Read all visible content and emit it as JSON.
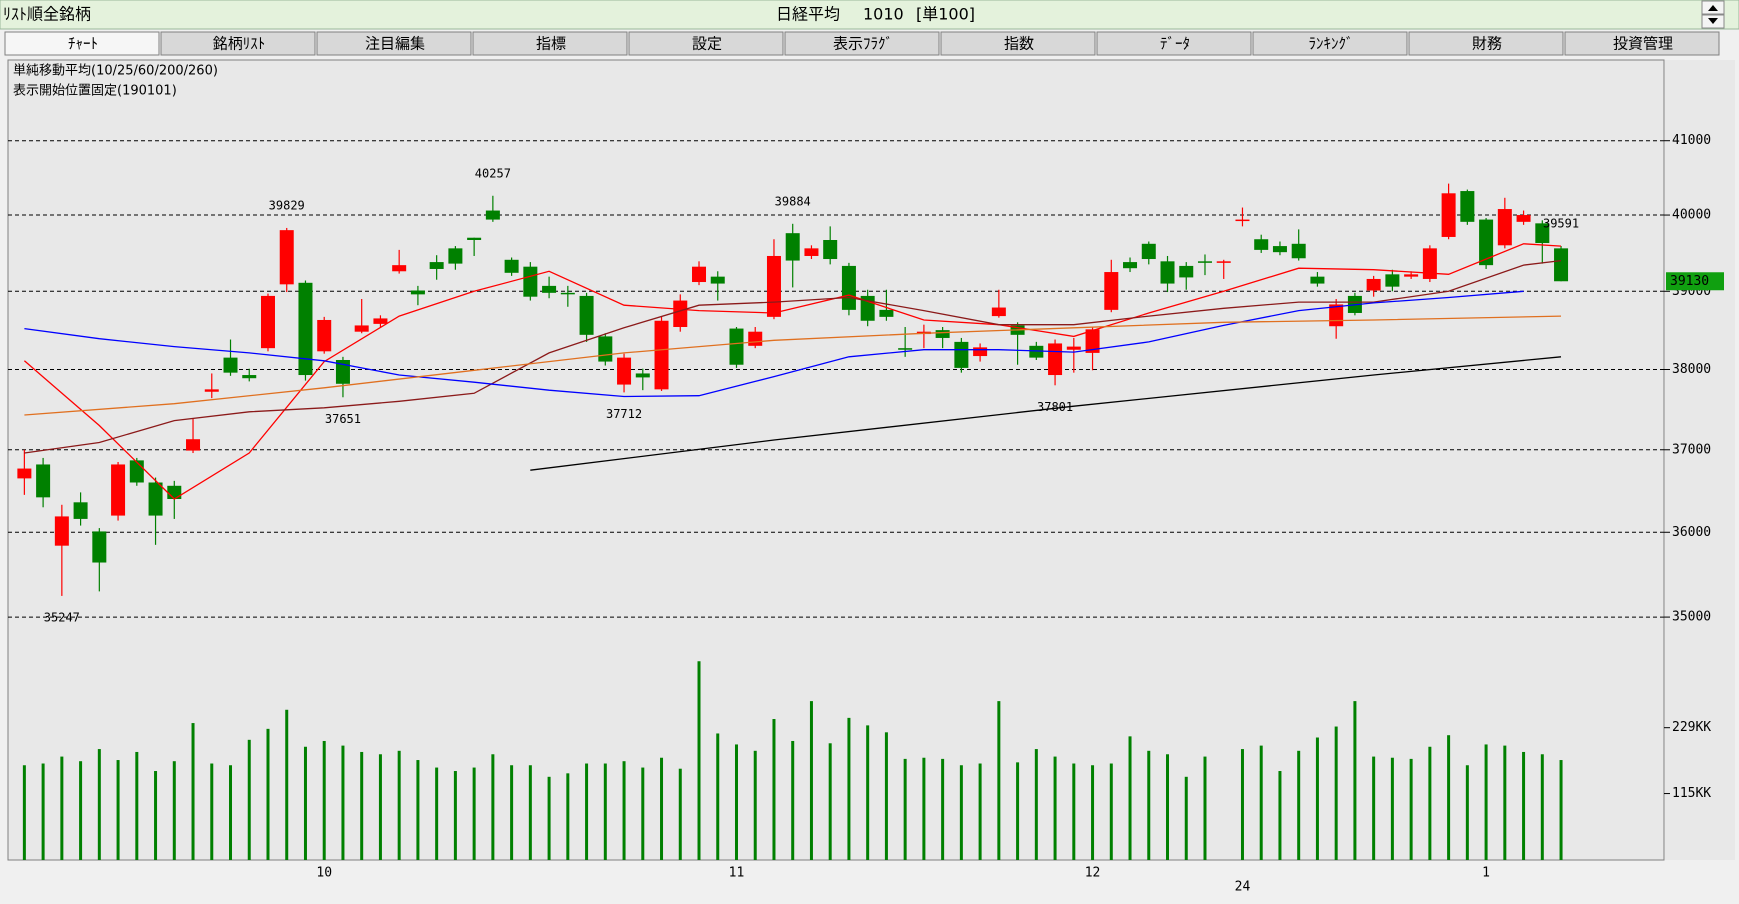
{
  "header": {
    "left": "ﾘｽﾄ順全銘柄",
    "name": "日経平均",
    "code": "1010",
    "unit": "[単100]"
  },
  "tabs": [
    "ﾁｬｰﾄ",
    "銘柄ﾘｽﾄ",
    "注目編集",
    "指標",
    "設定",
    "表示ﾌﾗｸﾞ",
    "指数",
    "ﾃﾞｰﾀ",
    "ﾗﾝｷﾝｸﾞ",
    "財務",
    "投資管理"
  ],
  "chart_data": {
    "type": "candlestick",
    "annotations": [
      "単純移動平均(10/25/60/200/260)",
      "表示開始位置固定(190101)"
    ],
    "log": true,
    "grid": true,
    "up_color": "#ff0000",
    "down_color": "#008000",
    "ylim": [
      34700,
      42100
    ],
    "yticks": [
      35000,
      36000,
      37000,
      38000,
      39000,
      40000,
      41000
    ],
    "categories": [
      null,
      null,
      null,
      null,
      null,
      null,
      null,
      null,
      null,
      null,
      null,
      null,
      null,
      null,
      null,
      null,
      "10",
      null,
      null,
      null,
      null,
      null,
      null,
      null,
      null,
      null,
      null,
      null,
      null,
      null,
      null,
      null,
      null,
      null,
      null,
      null,
      null,
      null,
      "11",
      null,
      null,
      null,
      null,
      null,
      null,
      null,
      null,
      null,
      null,
      null,
      null,
      null,
      null,
      null,
      null,
      null,
      null,
      "12",
      null,
      null,
      null,
      null,
      null,
      null,
      null,
      null,
      null,
      null,
      null,
      null,
      null,
      null,
      null,
      null,
      null,
      null,
      null,
      null,
      "1",
      null,
      null,
      null,
      null
    ],
    "category_years": [
      null,
      null,
      null,
      null,
      null,
      null,
      null,
      null,
      null,
      null,
      null,
      null,
      null,
      null,
      null,
      null,
      null,
      null,
      null,
      null,
      null,
      null,
      null,
      null,
      null,
      null,
      null,
      null,
      null,
      null,
      null,
      null,
      null,
      null,
      null,
      null,
      null,
      null,
      null,
      null,
      null,
      null,
      null,
      null,
      null,
      null,
      null,
      null,
      null,
      null,
      null,
      null,
      null,
      null,
      null,
      null,
      null,
      null,
      null,
      null,
      null,
      null,
      null,
      null,
      null,
      "24",
      null,
      null,
      null,
      null,
      null,
      null,
      null,
      null,
      null,
      null,
      null,
      null,
      null,
      null,
      null,
      null,
      null
    ],
    "open": [
      36650,
      36820,
      35840,
      36360,
      36010,
      36200,
      36870,
      36600,
      36560,
      36990,
      37720,
      38150,
      37930,
      38270,
      39090,
      39110,
      38230,
      38120,
      38480,
      38580,
      39260,
      39010,
      39380,
      39560,
      39700,
      40060,
      39410,
      39320,
      39070,
      38980,
      38940,
      38420,
      37810,
      37950,
      37750,
      38540,
      39120,
      39190,
      38520,
      38300,
      38670,
      39760,
      39460,
      39670,
      39330,
      38940,
      38760,
      38270,
      38450,
      38500,
      38350,
      38170,
      38680,
      38560,
      38300,
      37930,
      38250,
      38210,
      38760,
      39380,
      39620,
      39390,
      39330,
      39390,
      39370,
      39930,
      39680,
      39590,
      39620,
      39190,
      38550,
      38940,
      39010,
      39220,
      39190,
      39160,
      39710,
      40320,
      39940,
      39600,
      39910,
      39890,
      39560
    ],
    "high": [
      37000,
      36900,
      36330,
      36480,
      36050,
      36850,
      36900,
      36660,
      36620,
      37380,
      37950,
      38380,
      38010,
      38970,
      39829,
      39140,
      38670,
      38160,
      38900,
      38690,
      39540,
      39070,
      39470,
      39590,
      39700,
      40257,
      39440,
      39380,
      39190,
      39070,
      38980,
      38460,
      38200,
      38010,
      38670,
      38960,
      39390,
      39260,
      38540,
      38540,
      39680,
      39884,
      39600,
      39850,
      39370,
      39020,
      39020,
      38540,
      38570,
      38540,
      38400,
      38330,
      39020,
      38600,
      38350,
      38380,
      38400,
      38540,
      39410,
      39440,
      39650,
      39460,
      39380,
      39480,
      39410,
      40100,
      39740,
      39650,
      39810,
      39250,
      38900,
      38980,
      39200,
      39280,
      39260,
      39600,
      40420,
      40340,
      39960,
      40230,
      40060,
      39930,
      39591
    ],
    "low": [
      36450,
      36300,
      35247,
      36080,
      35300,
      36140,
      36560,
      35850,
      36160,
      36960,
      37640,
      37920,
      37850,
      38230,
      38990,
      37860,
      38200,
      37651,
      38460,
      38540,
      39230,
      38820,
      39150,
      39280,
      39460,
      39910,
      39200,
      38880,
      38910,
      38800,
      38350,
      38050,
      37712,
      37740,
      37730,
      38480,
      39080,
      38880,
      38020,
      38270,
      38640,
      39050,
      39420,
      39350,
      38690,
      38550,
      38620,
      38160,
      38270,
      38270,
      37960,
      38100,
      38660,
      38060,
      38120,
      37801,
      37960,
      37990,
      38730,
      39250,
      39350,
      38990,
      39020,
      39210,
      39160,
      39850,
      39500,
      39470,
      39400,
      39060,
      38390,
      38690,
      38930,
      39000,
      39160,
      39120,
      39680,
      39870,
      39290,
      39560,
      39870,
      39360,
      39130
    ],
    "close": [
      36770,
      36420,
      36190,
      36160,
      35640,
      36820,
      36600,
      36200,
      36400,
      37130,
      37750,
      37960,
      37890,
      38940,
      39800,
      37930,
      38630,
      37820,
      38560,
      38650,
      39340,
      38960,
      39290,
      39360,
      39670,
      39940,
      39240,
      38930,
      38980,
      38970,
      38440,
      38100,
      38150,
      37900,
      38620,
      38880,
      39320,
      39100,
      38060,
      38480,
      39460,
      39400,
      39560,
      39420,
      38760,
      38620,
      38670,
      38250,
      38480,
      38400,
      38020,
      38280,
      38790,
      38440,
      38150,
      38330,
      38290,
      38510,
      39250,
      39300,
      39420,
      39100,
      39180,
      39380,
      39390,
      39940,
      39540,
      39510,
      39430,
      39100,
      38830,
      38720,
      39160,
      39060,
      39220,
      39560,
      40290,
      39910,
      39340,
      40080,
      40000,
      39630,
      39130
    ],
    "high_labels": [
      null,
      null,
      null,
      null,
      null,
      null,
      null,
      null,
      null,
      null,
      null,
      null,
      null,
      null,
      "39829",
      null,
      null,
      null,
      null,
      null,
      null,
      null,
      null,
      null,
      null,
      "40257",
      null,
      null,
      null,
      null,
      null,
      null,
      null,
      null,
      null,
      null,
      null,
      null,
      null,
      null,
      null,
      "39884",
      null,
      null,
      null,
      null,
      null,
      null,
      null,
      null,
      null,
      null,
      null,
      null,
      null,
      null,
      null,
      null,
      null,
      null,
      null,
      null,
      null,
      null,
      null,
      null,
      null,
      null,
      null,
      null,
      null,
      null,
      null,
      null,
      null,
      null,
      null,
      null,
      null,
      null,
      null,
      null,
      "39591"
    ],
    "low_labels": [
      null,
      null,
      "35247",
      null,
      null,
      null,
      null,
      null,
      null,
      null,
      null,
      null,
      null,
      null,
      null,
      null,
      null,
      "37651",
      null,
      null,
      null,
      null,
      null,
      null,
      null,
      null,
      null,
      null,
      null,
      null,
      null,
      null,
      "37712",
      null,
      null,
      null,
      null,
      null,
      null,
      null,
      null,
      null,
      null,
      null,
      null,
      null,
      null,
      null,
      null,
      null,
      null,
      null,
      null,
      null,
      null,
      "37801",
      null,
      null,
      null,
      null,
      null,
      null,
      null,
      null,
      null,
      null,
      null,
      null,
      null,
      null,
      null,
      null,
      null,
      null,
      null,
      null,
      null,
      null,
      null,
      null,
      null,
      null,
      null
    ],
    "series": [
      {
        "color": "#ff0000",
        "x": [
          0,
          4,
          8,
          12,
          16,
          20,
          24,
          28,
          32,
          36,
          40,
          44,
          48,
          52,
          56,
          60,
          64,
          68,
          72,
          76,
          80,
          82
        ],
        "values": [
          38110,
          37300,
          36400,
          36960,
          38100,
          38680,
          39000,
          39260,
          38820,
          38750,
          38720,
          38950,
          38630,
          38570,
          38420,
          38720,
          39000,
          39300,
          39280,
          39220,
          39620,
          39590
        ]
      },
      {
        "color": "#8b1a1a",
        "x": [
          0,
          4,
          8,
          12,
          16,
          20,
          24,
          28,
          32,
          36,
          40,
          44,
          48,
          52,
          56,
          60,
          64,
          68,
          72,
          76,
          80,
          82
        ],
        "values": [
          36960,
          37090,
          37360,
          37470,
          37520,
          37600,
          37700,
          38210,
          38530,
          38820,
          38860,
          38920,
          38750,
          38570,
          38570,
          38680,
          38780,
          38860,
          38860,
          39000,
          39340,
          39400
        ]
      },
      {
        "color": "#0000ff",
        "x": [
          0,
          4,
          8,
          12,
          16,
          20,
          24,
          28,
          32,
          36,
          40,
          44,
          48,
          52,
          56,
          60,
          64,
          68,
          72,
          76,
          80
        ],
        "values": [
          38520,
          38390,
          38290,
          38210,
          38110,
          37930,
          37840,
          37740,
          37660,
          37670,
          37910,
          38160,
          38250,
          38250,
          38220,
          38350,
          38560,
          38750,
          38850,
          38920,
          39000
        ]
      },
      {
        "color": "#e07020",
        "x": [
          0,
          8,
          16,
          24,
          32,
          40,
          48,
          56,
          64,
          72,
          82
        ],
        "values": [
          37430,
          37570,
          37770,
          37990,
          38210,
          38370,
          38460,
          38530,
          38600,
          38630,
          38680
        ]
      },
      {
        "color": "#000000",
        "x": [
          27,
          40,
          56,
          72,
          82
        ],
        "values": [
          36750,
          37120,
          37540,
          37930,
          38160
        ]
      }
    ],
    "volume": {
      "color": "#008000",
      "ylim": [
        0,
        360
      ],
      "yticks": [
        {
          "value": 229,
          "label": "229KK"
        },
        {
          "value": 115,
          "label": "115KK"
        }
      ],
      "values": [
        164,
        167,
        179,
        171,
        192,
        173,
        187,
        154,
        171,
        237,
        167,
        164,
        208,
        227,
        260,
        196,
        206,
        198,
        187,
        183,
        189,
        173,
        160,
        154,
        160,
        183,
        164,
        164,
        144,
        150,
        167,
        167,
        171,
        160,
        177,
        158,
        344,
        219,
        200,
        189,
        244,
        206,
        275,
        202,
        246,
        233,
        221,
        175,
        177,
        175,
        164,
        167,
        275,
        169,
        192,
        179,
        167,
        164,
        167,
        214,
        189,
        183,
        144,
        179,
        null,
        192,
        198,
        154,
        189,
        212,
        231,
        275,
        179,
        177,
        175,
        196,
        216,
        164,
        200,
        198,
        187,
        183,
        173
      ]
    }
  }
}
